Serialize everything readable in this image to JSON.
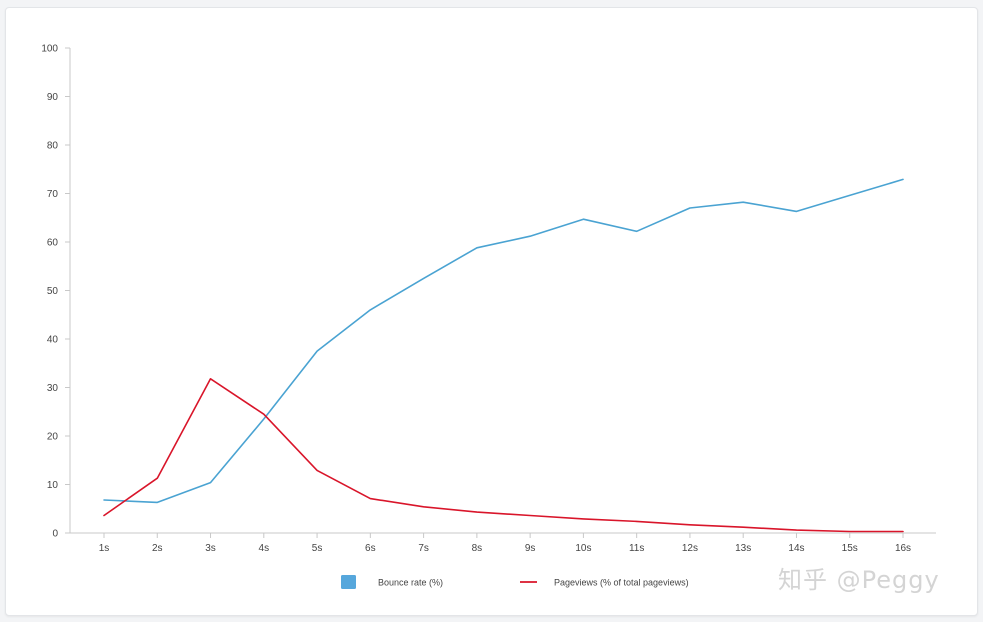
{
  "chart_data": {
    "type": "line",
    "title": "",
    "xlabel": "",
    "ylabel": "",
    "categories": [
      "1s",
      "2s",
      "3s",
      "4s",
      "5s",
      "6s",
      "7s",
      "8s",
      "9s",
      "10s",
      "11s",
      "12s",
      "13s",
      "14s",
      "15s",
      "16s"
    ],
    "ylim": [
      0,
      100
    ],
    "y_ticks": [
      "0",
      "10",
      "20",
      "30",
      "40",
      "50",
      "60",
      "70",
      "80",
      "90",
      "100"
    ],
    "grid": false,
    "legend_position": "bottom",
    "series": [
      {
        "name": "Bounce rate  (%)",
        "color": "#4aa3d2",
        "legend_swatch_color": "#56a7dc",
        "legend_marker": "square",
        "values": [
          6.8,
          6.3,
          10.4,
          23.5,
          37.5,
          46.0,
          52.5,
          58.8,
          61.2,
          64.7,
          62.2,
          67.0,
          68.2,
          66.3,
          69.6,
          72.9
        ]
      },
      {
        "name": "Pageviews (% of total pageviews)",
        "color": "#d9152a",
        "legend_marker": "line",
        "values": [
          3.6,
          11.3,
          31.8,
          24.5,
          12.9,
          7.1,
          5.4,
          4.3,
          3.6,
          2.9,
          2.4,
          1.7,
          1.2,
          0.6,
          0.3,
          0.3
        ]
      }
    ]
  },
  "watermark": {
    "text": "知乎 @Peggy"
  }
}
